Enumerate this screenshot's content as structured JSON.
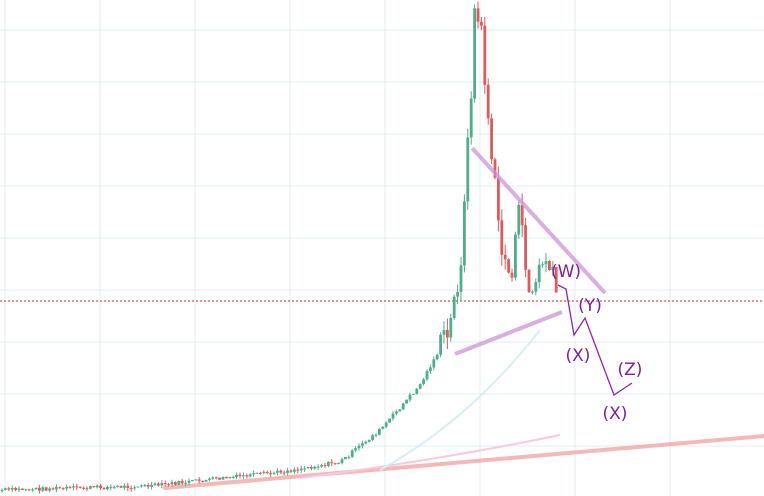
{
  "annotations": {
    "labels": [
      "(W)",
      "(Y)",
      "(X)",
      "(Z)",
      "(X)"
    ]
  }
}
